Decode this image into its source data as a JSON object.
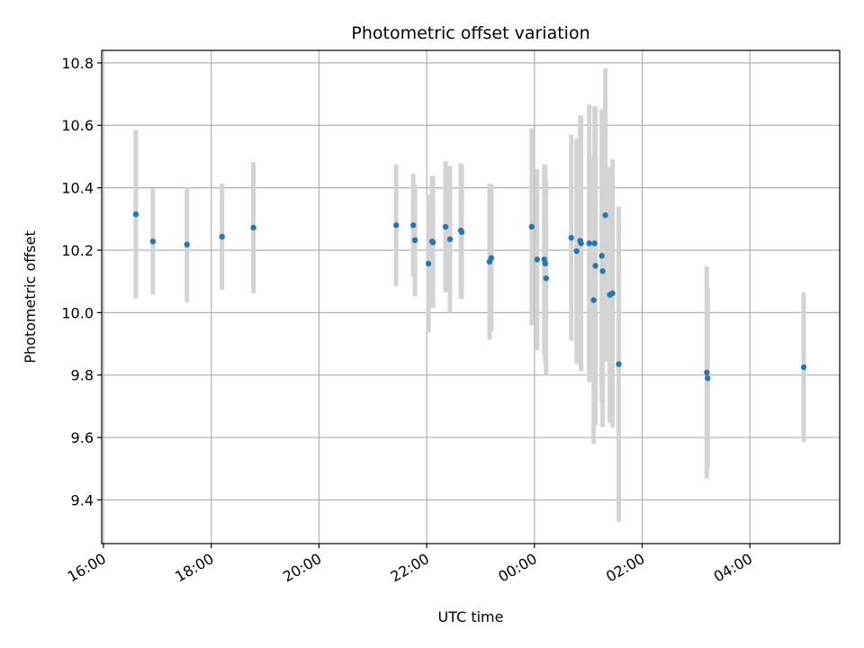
{
  "chart_data": {
    "type": "scatter",
    "title": "Photometric offset variation",
    "xlabel": "UTC time",
    "ylabel": "Photometric offset",
    "x_axis_kind": "time",
    "x_start_label": "16:00 (first day)",
    "x_tick_labels": [
      "16:00",
      "18:00",
      "20:00",
      "22:00",
      "00:00",
      "02:00",
      "04:00"
    ],
    "y_tick_labels": [
      "9.4",
      "9.6",
      "9.8",
      "10.0",
      "10.2",
      "10.4",
      "10.6",
      "10.8"
    ],
    "ylim": [
      9.26,
      10.84
    ],
    "grid": true,
    "colors": {
      "point": "#1f77b4",
      "errorbar": "#d3d3d3",
      "grid": "#b0b0b0"
    },
    "points": [
      {
        "time": "16:36",
        "y": 10.315,
        "err": 0.27
      },
      {
        "time": "16:55",
        "y": 10.228,
        "err": 0.17
      },
      {
        "time": "17:33",
        "y": 10.218,
        "err": 0.185
      },
      {
        "time": "18:12",
        "y": 10.243,
        "err": 0.17
      },
      {
        "time": "18:47",
        "y": 10.272,
        "err": 0.21
      },
      {
        "time": "21:26",
        "y": 10.28,
        "err": 0.195
      },
      {
        "time": "21:45",
        "y": 10.28,
        "err": 0.165
      },
      {
        "time": "21:47",
        "y": 10.232,
        "err": 0.18
      },
      {
        "time": "22:02",
        "y": 10.157,
        "err": 0.22
      },
      {
        "time": "22:06",
        "y": 10.228,
        "err": 0.21
      },
      {
        "time": "22:07",
        "y": 10.225,
        "err": 0.21
      },
      {
        "time": "22:21",
        "y": 10.275,
        "err": 0.21
      },
      {
        "time": "22:26",
        "y": 10.235,
        "err": 0.235
      },
      {
        "time": "22:38",
        "y": 10.263,
        "err": 0.215
      },
      {
        "time": "22:39",
        "y": 10.258,
        "err": 0.215
      },
      {
        "time": "23:10",
        "y": 10.163,
        "err": 0.25
      },
      {
        "time": "23:12",
        "y": 10.175,
        "err": 0.235
      },
      {
        "time": "23:57",
        "y": 10.275,
        "err": 0.315
      },
      {
        "time": "00:03",
        "y": 10.17,
        "err": 0.29
      },
      {
        "time": "00:11",
        "y": 10.17,
        "err": 0.305
      },
      {
        "time": "00:12",
        "y": 10.157,
        "err": 0.315
      },
      {
        "time": "00:13",
        "y": 10.11,
        "err": 0.31
      },
      {
        "time": "00:41",
        "y": 10.24,
        "err": 0.33
      },
      {
        "time": "00:47",
        "y": 10.197,
        "err": 0.36
      },
      {
        "time": "00:51",
        "y": 10.23,
        "err": 0.4
      },
      {
        "time": "00:52",
        "y": 10.222,
        "err": 0.41
      },
      {
        "time": "01:01",
        "y": 10.222,
        "err": 0.445
      },
      {
        "time": "01:06",
        "y": 10.04,
        "err": 0.46
      },
      {
        "time": "01:07",
        "y": 10.222,
        "err": 0.44
      },
      {
        "time": "01:08",
        "y": 10.15,
        "err": 0.51
      },
      {
        "time": "01:15",
        "y": 10.182,
        "err": 0.47
      },
      {
        "time": "01:16",
        "y": 10.133,
        "err": 0.5
      },
      {
        "time": "01:19",
        "y": 10.312,
        "err": 0.47
      },
      {
        "time": "01:24",
        "y": 10.057,
        "err": 0.41
      },
      {
        "time": "01:27",
        "y": 10.062,
        "err": 0.43
      },
      {
        "time": "01:34",
        "y": 9.835,
        "err": 0.505
      },
      {
        "time": "03:12",
        "y": 9.808,
        "err": 0.34
      },
      {
        "time": "03:13",
        "y": 9.79,
        "err": 0.29
      },
      {
        "time": "05:00",
        "y": 9.825,
        "err": 0.24
      }
    ]
  }
}
